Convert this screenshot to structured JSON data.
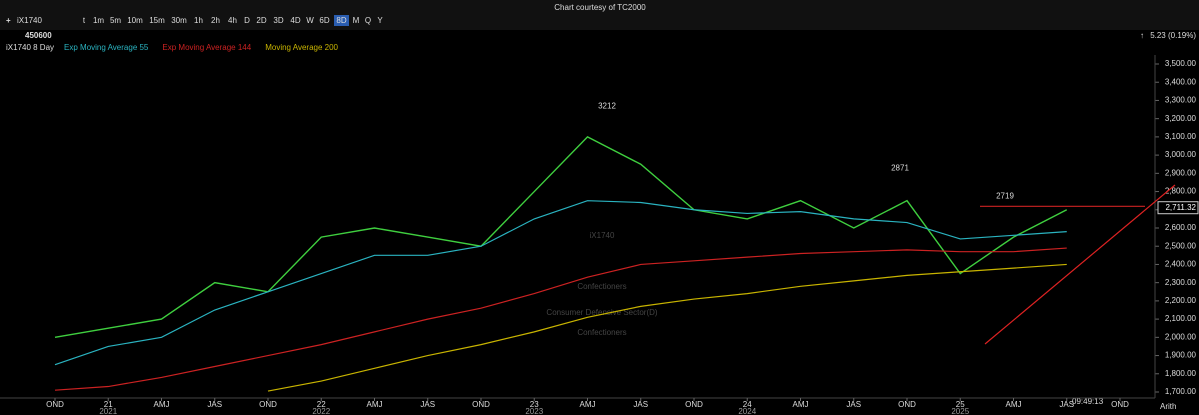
{
  "header": {
    "caption": "Chart courtesy of TC2000",
    "symbol": "iX1740",
    "code": "450600",
    "timeframes": [
      "t",
      "1m",
      "5m",
      "10m",
      "15m",
      "30m",
      "1h",
      "2h",
      "4h",
      "D",
      "2D",
      "3D",
      "4D",
      "W",
      "6D",
      "8D",
      "M",
      "Q",
      "Y"
    ],
    "active_timeframe": "8D",
    "change": "5.23 (0.19%)",
    "clock": "09:49:13",
    "scale_mode": "Arith"
  },
  "watermark": {
    "symbol": "iX1740",
    "industry": "Confectioners",
    "sector": "Consumer Defensive Sector(D)",
    "group": "Confectioners"
  },
  "chart_data": {
    "type": "line",
    "categories": [
      "OND",
      "21",
      "AMJ",
      "JAS",
      "OND",
      "22",
      "AMJ",
      "JAS",
      "OND",
      "23",
      "AMJ",
      "JAS",
      "OND",
      "24",
      "AMJ",
      "JAS",
      "OND",
      "25",
      "AMJ",
      "JAS",
      "OND"
    ],
    "years": [
      "2021",
      "2022",
      "2023",
      "2024",
      "2025"
    ],
    "series": [
      {
        "name": "iX1740 8 Day",
        "color": "#3fcf3f",
        "values": [
          2000,
          2050,
          2100,
          2300,
          2250,
          2550,
          2600,
          2550,
          2500,
          2800,
          3100,
          2950,
          2700,
          2650,
          2750,
          2600,
          2750,
          2350,
          2550,
          2700,
          null
        ]
      },
      {
        "name": "Exp Moving Average 55",
        "color": "#2ab3c0",
        "values": [
          1850,
          1950,
          2000,
          2150,
          2250,
          2350,
          2450,
          2450,
          2500,
          2650,
          2750,
          2740,
          2700,
          2680,
          2690,
          2650,
          2630,
          2540,
          2560,
          2580,
          null
        ]
      },
      {
        "name": "Exp Moving Average 144",
        "color": "#cc2222",
        "values": [
          1710,
          1730,
          1780,
          1840,
          1900,
          1960,
          2030,
          2100,
          2160,
          2240,
          2330,
          2400,
          2420,
          2440,
          2460,
          2470,
          2480,
          2470,
          2470,
          2490,
          null
        ]
      },
      {
        "name": "Moving Average 200",
        "color": "#c8b400",
        "values": [
          null,
          null,
          null,
          null,
          1705,
          1760,
          1830,
          1900,
          1960,
          2030,
          2110,
          2170,
          2210,
          2240,
          2280,
          2310,
          2340,
          2360,
          2380,
          2400,
          null
        ]
      }
    ],
    "annotations": [
      3212,
      2871,
      2719
    ],
    "last_price": {
      "value": 2711.32,
      "label": "2,711.32"
    },
    "ylim": [
      1700,
      3500
    ],
    "yticks": [
      {
        "value": 1700,
        "label": "1,700.00"
      },
      {
        "value": 1800,
        "label": "1,800.00"
      },
      {
        "value": 1900,
        "label": "1,900.00"
      },
      {
        "value": 2000,
        "label": "2,000.00"
      },
      {
        "value": 2100,
        "label": "2,100.00"
      },
      {
        "value": 2200,
        "label": "2,200.00"
      },
      {
        "value": 2300,
        "label": "2,300.00"
      },
      {
        "value": 2400,
        "label": "2,400.00"
      },
      {
        "value": 2500,
        "label": "2,500.00"
      },
      {
        "value": 2600,
        "label": "2,600.00"
      },
      {
        "value": 2700,
        "label": "2,700.00"
      },
      {
        "value": 2800,
        "label": "2,800.00"
      },
      {
        "value": 2900,
        "label": "2,900.00"
      },
      {
        "value": 3000,
        "label": "3,000.00"
      },
      {
        "value": 3100,
        "label": "3,100.00"
      },
      {
        "value": 3200,
        "label": "3,200.00"
      },
      {
        "value": 3300,
        "label": "3,300.00"
      },
      {
        "value": 3400,
        "label": "3,400.00"
      },
      {
        "value": 3500,
        "label": "3,500.00"
      }
    ]
  }
}
